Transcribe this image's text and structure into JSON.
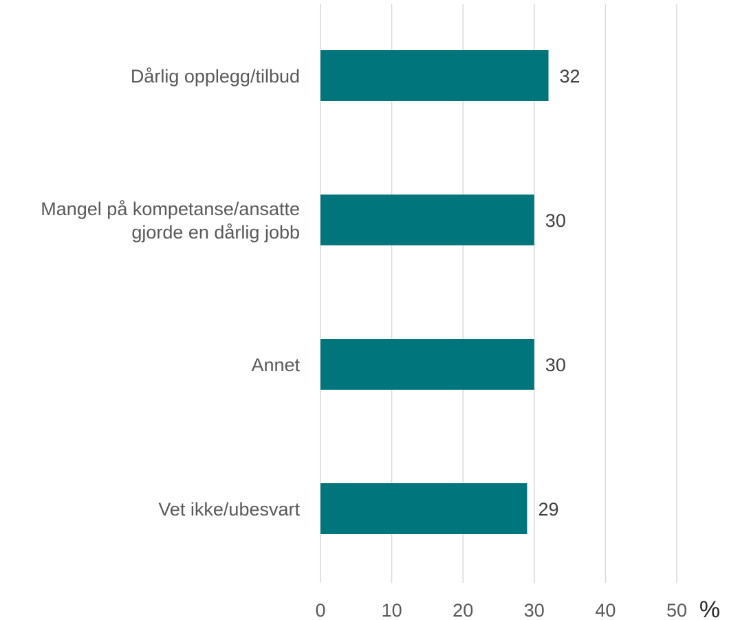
{
  "chart_data": {
    "type": "bar",
    "orientation": "horizontal",
    "categories": [
      "Dårlig opplegg/tilbud",
      "Mangel på kompetanse/ansatte gjorde en dårlig jobb",
      "Annet",
      "Vet ikke/ubesvart"
    ],
    "category_lines": [
      [
        "Dårlig opplegg/tilbud"
      ],
      [
        "Mangel på kompetanse/ansatte",
        "gjorde en dårlig jobb"
      ],
      [
        "Annet"
      ],
      [
        "Vet ikke/ubesvart"
      ]
    ],
    "values": [
      32,
      30,
      30,
      29
    ],
    "data_labels": [
      "32",
      "30",
      "30",
      "29"
    ],
    "xlim": [
      0,
      50
    ],
    "ticks": [
      0,
      10,
      20,
      30,
      40,
      50
    ],
    "tick_labels": [
      "0",
      "10",
      "20",
      "30",
      "40",
      "50"
    ],
    "unit": "%",
    "grid": true,
    "bar_color": "#00757c",
    "title": "",
    "xlabel": "",
    "ylabel": ""
  }
}
